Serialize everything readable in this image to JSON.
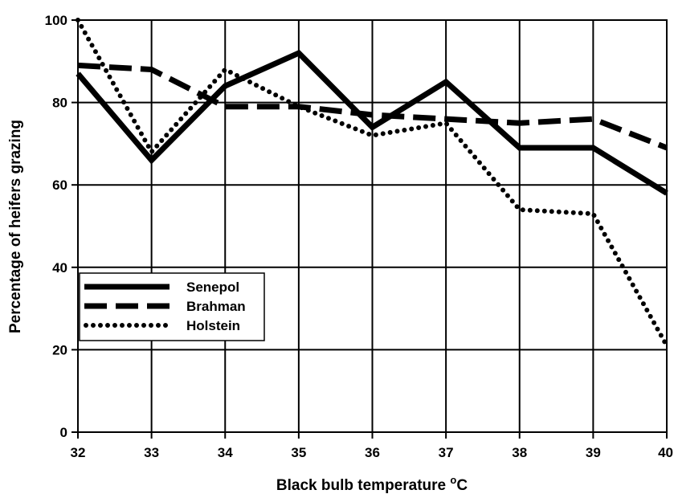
{
  "chart_data": {
    "type": "line",
    "title": "",
    "xlabel": "Black bulb temperature ",
    "xlabel_superscript": "o",
    "xlabel_unit": "C",
    "ylabel": "Percentage of heifers grazing",
    "x": [
      32,
      33,
      34,
      35,
      36,
      37,
      38,
      39,
      40
    ],
    "xlim": [
      32,
      40
    ],
    "ylim": [
      0,
      100
    ],
    "x_ticks": [
      "32",
      "33",
      "34",
      "35",
      "36",
      "37",
      "38",
      "39",
      "40"
    ],
    "y_ticks": [
      "0",
      "20",
      "40",
      "60",
      "80",
      "100"
    ],
    "grid": true,
    "legend_position": "lower-left",
    "series": [
      {
        "name": "Senepol",
        "style": "solid",
        "values": [
          87,
          66,
          84,
          92,
          74,
          85,
          69,
          69,
          58
        ]
      },
      {
        "name": "Brahman",
        "style": "dashed",
        "values": [
          89,
          88,
          79,
          79,
          77,
          76,
          75,
          76,
          69
        ]
      },
      {
        "name": "Holstein",
        "style": "dotted",
        "values": [
          100,
          68,
          88,
          79,
          72,
          75,
          54,
          53,
          21
        ]
      }
    ],
    "colors": {
      "line": "#000000",
      "grid": "#000000",
      "background": "#ffffff"
    }
  }
}
